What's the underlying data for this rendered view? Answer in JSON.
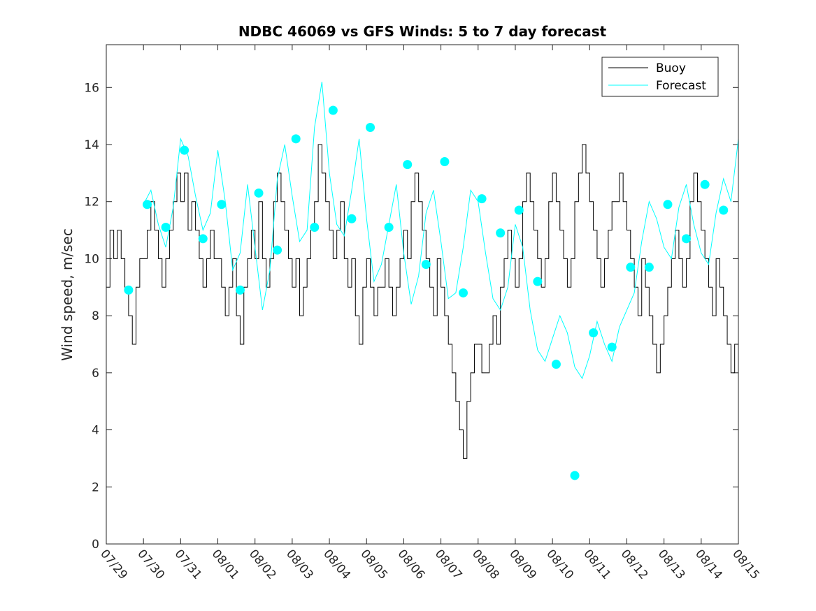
{
  "chart_data": {
    "type": "line",
    "title": "NDBC 46069 vs GFS Winds: 5 to 7 day forecast",
    "xlabel": "",
    "ylabel": "Wind speed, m/sec",
    "xlim": [
      "07/29",
      "08/15"
    ],
    "ylim": [
      0,
      17.5
    ],
    "x_ticks": [
      "07/29",
      "07/30",
      "07/31",
      "08/01",
      "08/02",
      "08/03",
      "08/04",
      "08/05",
      "08/06",
      "08/07",
      "08/08",
      "08/09",
      "08/10",
      "08/11",
      "08/12",
      "08/13",
      "08/14",
      "08/15"
    ],
    "y_ticks": [
      0,
      2,
      4,
      6,
      8,
      10,
      12,
      14,
      16
    ],
    "legend": {
      "placement": "top-right",
      "entries": [
        "Buoy",
        "Forecast"
      ]
    },
    "colors": {
      "buoy": "#000000",
      "forecast": "#00ffff",
      "marker": "#00ffff"
    },
    "grid": false,
    "series": [
      {
        "name": "Buoy",
        "x": [
          0.0,
          0.1,
          0.2,
          0.3,
          0.4,
          0.5,
          0.6,
          0.7,
          0.8,
          0.9,
          1.0,
          1.1,
          1.2,
          1.3,
          1.4,
          1.5,
          1.6,
          1.7,
          1.8,
          1.9,
          2.0,
          2.1,
          2.2,
          2.3,
          2.4,
          2.5,
          2.6,
          2.7,
          2.8,
          2.9,
          3.0,
          3.1,
          3.2,
          3.3,
          3.4,
          3.5,
          3.6,
          3.7,
          3.8,
          3.9,
          4.0,
          4.1,
          4.2,
          4.3,
          4.4,
          4.5,
          4.6,
          4.7,
          4.8,
          4.9,
          5.0,
          5.1,
          5.2,
          5.3,
          5.4,
          5.5,
          5.6,
          5.7,
          5.8,
          5.9,
          6.0,
          6.1,
          6.2,
          6.3,
          6.4,
          6.5,
          6.6,
          6.7,
          6.8,
          6.9,
          7.0,
          7.1,
          7.2,
          7.3,
          7.4,
          7.5,
          7.6,
          7.7,
          7.8,
          7.9,
          8.0,
          8.1,
          8.2,
          8.3,
          8.4,
          8.5,
          8.6,
          8.7,
          8.8,
          8.9,
          9.0,
          9.1,
          9.2,
          9.3,
          9.4,
          9.5,
          9.6,
          9.7,
          9.8,
          9.9,
          10.0,
          10.1,
          10.2,
          10.3,
          10.4,
          10.5,
          10.6,
          10.7,
          10.8,
          10.9,
          11.0,
          11.1,
          11.2,
          11.3,
          11.4,
          11.5,
          11.6,
          11.7,
          11.8,
          11.9,
          12.0,
          12.1,
          12.2,
          12.3,
          12.4,
          12.5,
          12.6,
          12.7,
          12.8,
          12.9,
          13.0,
          13.1,
          13.2,
          13.3,
          13.4,
          13.5,
          13.6,
          13.7,
          13.8,
          13.9,
          14.0,
          14.1,
          14.2,
          14.3,
          14.4,
          14.5,
          14.6,
          14.7,
          14.8,
          14.9,
          15.0,
          15.1,
          15.2,
          15.3,
          15.4,
          15.5,
          15.6,
          15.7,
          15.8,
          15.9,
          16.0,
          16.1,
          16.2,
          16.3,
          16.4,
          16.5,
          16.6,
          16.7,
          16.8,
          16.9,
          17.0
        ],
        "values": [
          9,
          11,
          10,
          11,
          10,
          9,
          8,
          7,
          9,
          10,
          10,
          11,
          12,
          11,
          10,
          9,
          10,
          11,
          12,
          13,
          12,
          13,
          11,
          12,
          11,
          10,
          9,
          10,
          11,
          10,
          10,
          9,
          8,
          9,
          10,
          8,
          7,
          9,
          10,
          11,
          10,
          12,
          10,
          9,
          10,
          12,
          13,
          12,
          11,
          10,
          9,
          10,
          8,
          9,
          10,
          11,
          12,
          14,
          13,
          12,
          11,
          10,
          11,
          12,
          10,
          9,
          10,
          8,
          7,
          9,
          10,
          9,
          8,
          9,
          9,
          10,
          9,
          8,
          9,
          10,
          11,
          10,
          12,
          13,
          12,
          11,
          10,
          9,
          8,
          10,
          9,
          8,
          7,
          6,
          5,
          4,
          3,
          5,
          6,
          7,
          7,
          6,
          6,
          7,
          8,
          7,
          9,
          10,
          11,
          10,
          9,
          10,
          12,
          13,
          12,
          11,
          10,
          9,
          10,
          12,
          13,
          12,
          11,
          10,
          9,
          10,
          12,
          13,
          14,
          13,
          12,
          11,
          10,
          9,
          10,
          11,
          12,
          12,
          13,
          12,
          11,
          10,
          9,
          8,
          10,
          9,
          8,
          7,
          6,
          7,
          8,
          9,
          10,
          11,
          10,
          9,
          10,
          12,
          13,
          12,
          11,
          10,
          9,
          8,
          10,
          9,
          8,
          7,
          6,
          7,
          8
        ]
      },
      {
        "name": "Forecast",
        "x": [
          1.0,
          1.2,
          1.4,
          1.6,
          1.8,
          2.0,
          2.2,
          2.4,
          2.6,
          2.8,
          3.0,
          3.2,
          3.4,
          3.6,
          3.8,
          4.0,
          4.2,
          4.4,
          4.6,
          4.8,
          5.0,
          5.2,
          5.4,
          5.6,
          5.8,
          6.0,
          6.2,
          6.4,
          6.6,
          6.8,
          7.0,
          7.2,
          7.4,
          7.6,
          7.8,
          8.0,
          8.2,
          8.4,
          8.6,
          8.8,
          9.0,
          9.2,
          9.4,
          9.6,
          9.8,
          10.0,
          10.2,
          10.4,
          10.6,
          10.8,
          11.0,
          11.2,
          11.4,
          11.6,
          11.8,
          12.0,
          12.2,
          12.4,
          12.6,
          12.8,
          13.0,
          13.2,
          13.4,
          13.6,
          13.8,
          14.0,
          14.2,
          14.4,
          14.6,
          14.8,
          15.0,
          15.2,
          15.4,
          15.6,
          15.8,
          16.0,
          16.2,
          16.4,
          16.6,
          16.8,
          17.0
        ],
        "values": [
          11.9,
          12.4,
          11.2,
          10.4,
          11.8,
          14.2,
          13.6,
          12.2,
          11.0,
          11.6,
          13.8,
          12.0,
          9.6,
          10.2,
          12.6,
          10.4,
          8.2,
          9.6,
          12.8,
          14.0,
          12.2,
          10.6,
          11.0,
          14.6,
          16.2,
          13.0,
          11.2,
          10.8,
          12.4,
          14.2,
          11.4,
          9.2,
          9.8,
          11.2,
          12.6,
          10.2,
          8.4,
          9.4,
          11.6,
          12.4,
          10.6,
          8.6,
          8.8,
          10.4,
          12.4,
          12.0,
          10.2,
          8.6,
          8.2,
          9.0,
          11.2,
          10.4,
          8.2,
          6.8,
          6.4,
          7.2,
          8.0,
          7.4,
          6.2,
          5.8,
          6.6,
          7.8,
          7.0,
          6.4,
          7.6,
          8.2,
          8.8,
          10.6,
          12.0,
          11.4,
          10.4,
          10.0,
          11.8,
          12.6,
          11.2,
          10.2,
          9.8,
          11.6,
          12.8,
          12.0,
          14.2
        ]
      },
      {
        "name": "Forecast points",
        "x": [
          0.6,
          1.1,
          1.6,
          2.1,
          2.6,
          3.1,
          3.6,
          4.1,
          4.6,
          5.1,
          5.6,
          6.1,
          6.6,
          7.1,
          7.6,
          8.1,
          8.6,
          9.1,
          9.6,
          10.1,
          10.6,
          11.1,
          11.6,
          12.1,
          12.6,
          13.1,
          13.6,
          14.1,
          14.6,
          15.1,
          15.6,
          16.1,
          16.6
        ],
        "values": [
          8.9,
          11.9,
          11.1,
          13.8,
          10.7,
          11.9,
          8.9,
          12.3,
          10.3,
          14.2,
          11.1,
          15.2,
          11.4,
          14.6,
          11.1,
          13.3,
          9.8,
          13.4,
          8.8,
          12.1,
          10.9,
          11.7,
          9.2,
          6.3,
          2.4,
          7.4,
          6.9,
          9.7,
          9.7,
          11.9,
          10.7,
          12.6,
          11.7
        ]
      }
    ]
  }
}
